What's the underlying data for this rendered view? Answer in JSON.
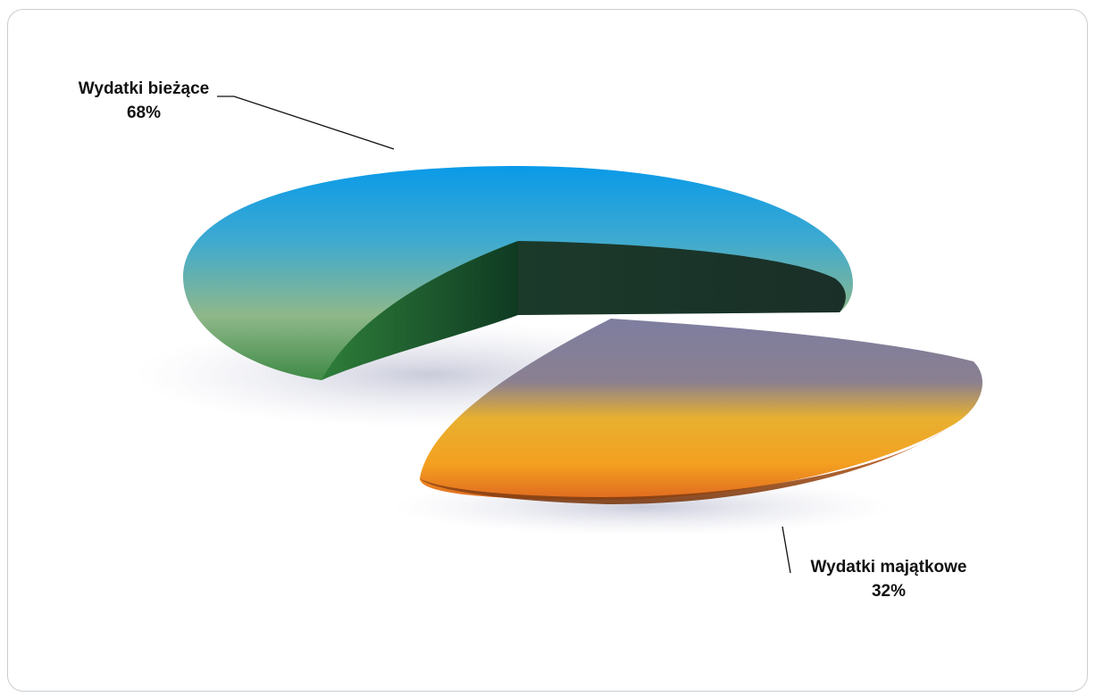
{
  "chart_data": {
    "type": "pie",
    "title": "",
    "slices": [
      {
        "label": "Wydatki bieżące",
        "value": 68,
        "display": "68%",
        "color": "#1e96e0"
      },
      {
        "label": "Wydatki majątkowe",
        "value": 32,
        "display": "32%",
        "color": "#f0a020"
      }
    ],
    "exploded": "Wydatki majątkowe",
    "style": "3d",
    "legend": "none"
  }
}
